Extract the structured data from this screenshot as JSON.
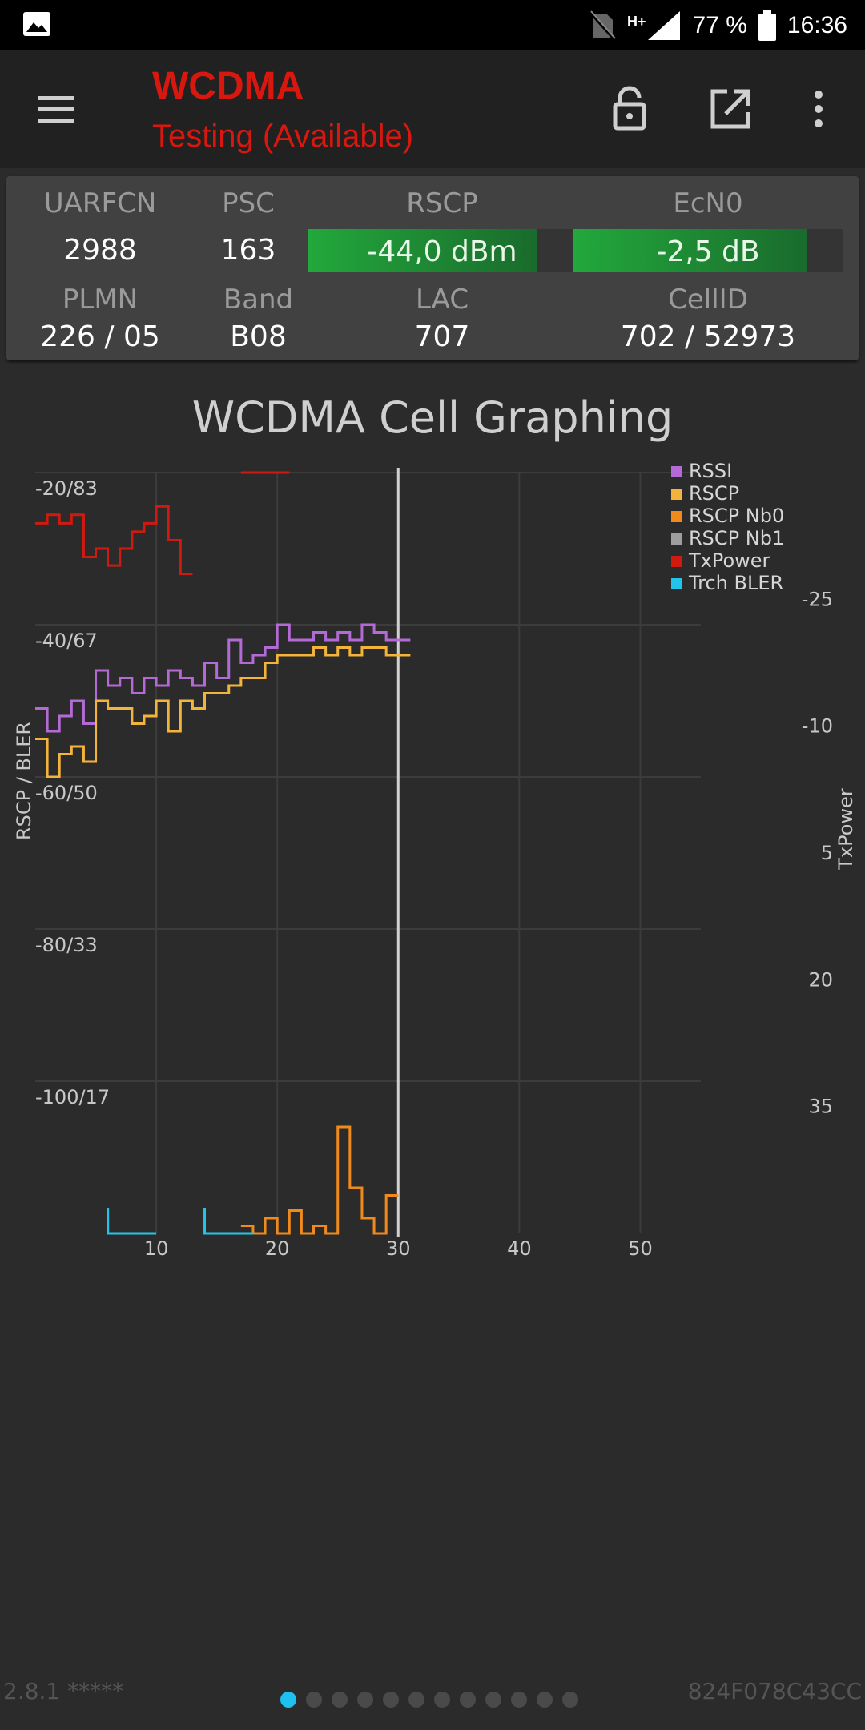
{
  "status_bar": {
    "network_type": "H+",
    "battery": "77 %",
    "time": "16:36"
  },
  "app_bar": {
    "title": "WCDMA",
    "subtitle": "Testing (Available)"
  },
  "cell_info": {
    "uarfcn_label": "UARFCN",
    "uarfcn": "2988",
    "psc_label": "PSC",
    "psc": "163",
    "rscp_label": "RSCP",
    "rscp": "-44,0 dBm",
    "rscp_level": 0.85,
    "ecn0_label": "EcN0",
    "ecn0": "-2,5 dB",
    "ecn0_level": 0.87,
    "plmn_label": "PLMN",
    "plmn": "226 / 05",
    "band_label": "Band",
    "band": "B08",
    "lac_label": "LAC",
    "lac": "707",
    "cellid_label": "CellID",
    "cellid": "702 / 52973"
  },
  "graph_title": "WCDMA Cell Graphing",
  "chart_data": {
    "type": "line",
    "ylabel": "RSCP / BLER",
    "y2label": "TxPower",
    "x_ticks": [
      10,
      20,
      30,
      40,
      50
    ],
    "xlim": [
      0,
      55
    ],
    "ylim": [
      -120,
      -20
    ],
    "y_ticks": [
      "-20/83",
      "-40/67",
      "-60/50",
      "-80/33",
      "-100/17"
    ],
    "y_tick_values": [
      -20,
      -40,
      -60,
      -80,
      -100
    ],
    "y2_ticks": [
      "-25",
      "-10",
      "5",
      "20",
      "35"
    ],
    "y2_tick_values": [
      -25,
      -10,
      5,
      20,
      35
    ],
    "y2lim": [
      -40,
      50
    ],
    "cursor_x": 30,
    "legend_position": "top-right",
    "grid": true,
    "series": [
      {
        "name": "RSSI",
        "color": "#b46ad6",
        "x": [
          0,
          1,
          2,
          3,
          4,
          5,
          6,
          7,
          8,
          9,
          10,
          11,
          12,
          13,
          14,
          15,
          16,
          17,
          18,
          19,
          20,
          21,
          22,
          23,
          24,
          25,
          26,
          27,
          28,
          29,
          30
        ],
        "y": [
          -51,
          -54,
          -52,
          -50,
          -53,
          -46,
          -48,
          -47,
          -49,
          -47,
          -48,
          -46,
          -47,
          -48,
          -45,
          -47,
          -42,
          -45,
          -44,
          -43,
          -40,
          -42,
          -42,
          -41,
          -42,
          -41,
          -42,
          -40,
          -41,
          -42,
          -42
        ]
      },
      {
        "name": "RSCP",
        "color": "#f4b33a",
        "x": [
          0,
          1,
          2,
          3,
          4,
          5,
          6,
          7,
          8,
          9,
          10,
          11,
          12,
          13,
          14,
          15,
          16,
          17,
          18,
          19,
          20,
          21,
          22,
          23,
          24,
          25,
          26,
          27,
          28,
          29,
          30
        ],
        "y": [
          -55,
          -60,
          -57,
          -56,
          -58,
          -50,
          -51,
          -51,
          -53,
          -52,
          -50,
          -54,
          -50,
          -51,
          -49,
          -49,
          -48,
          -47,
          -47,
          -45,
          -44,
          -44,
          -44,
          -43,
          -44,
          -43,
          -44,
          -43,
          -43,
          -44,
          -44
        ]
      },
      {
        "name": "RSCP Nb0",
        "color": "#f08a1c",
        "x": [
          17,
          18,
          19,
          20,
          21,
          22,
          23,
          24,
          25,
          26,
          27,
          28,
          29
        ],
        "y": [
          -119,
          -120,
          -118,
          -120,
          -117,
          -120,
          -119,
          -120,
          -106,
          -114,
          -118,
          -120,
          -115
        ]
      },
      {
        "name": "RSCP Nb1",
        "color": "#9e9e9e",
        "x": [],
        "y": []
      },
      {
        "name": "TxPower",
        "color": "#d01a10",
        "axis": "right",
        "x": [
          0,
          1,
          2,
          3,
          4,
          5,
          6,
          7,
          8,
          9,
          10,
          11,
          12,
          13,
          17,
          18,
          19,
          20
        ],
        "y": [
          -34,
          -35,
          -34,
          -35,
          -30,
          -31,
          -29,
          -31,
          -33,
          -34,
          -36,
          -32,
          -28,
          -28,
          -40,
          -40,
          -40,
          -40
        ]
      },
      {
        "name": "Trch BLER",
        "color": "#22c4ea",
        "x": [
          6,
          10,
          14,
          18
        ],
        "y": [
          -120,
          -120,
          -120,
          -120
        ]
      }
    ]
  },
  "footer": {
    "version": "2.8.1 *****",
    "device_id": "824F078C43CC",
    "pages": 12,
    "active_page": 0
  }
}
